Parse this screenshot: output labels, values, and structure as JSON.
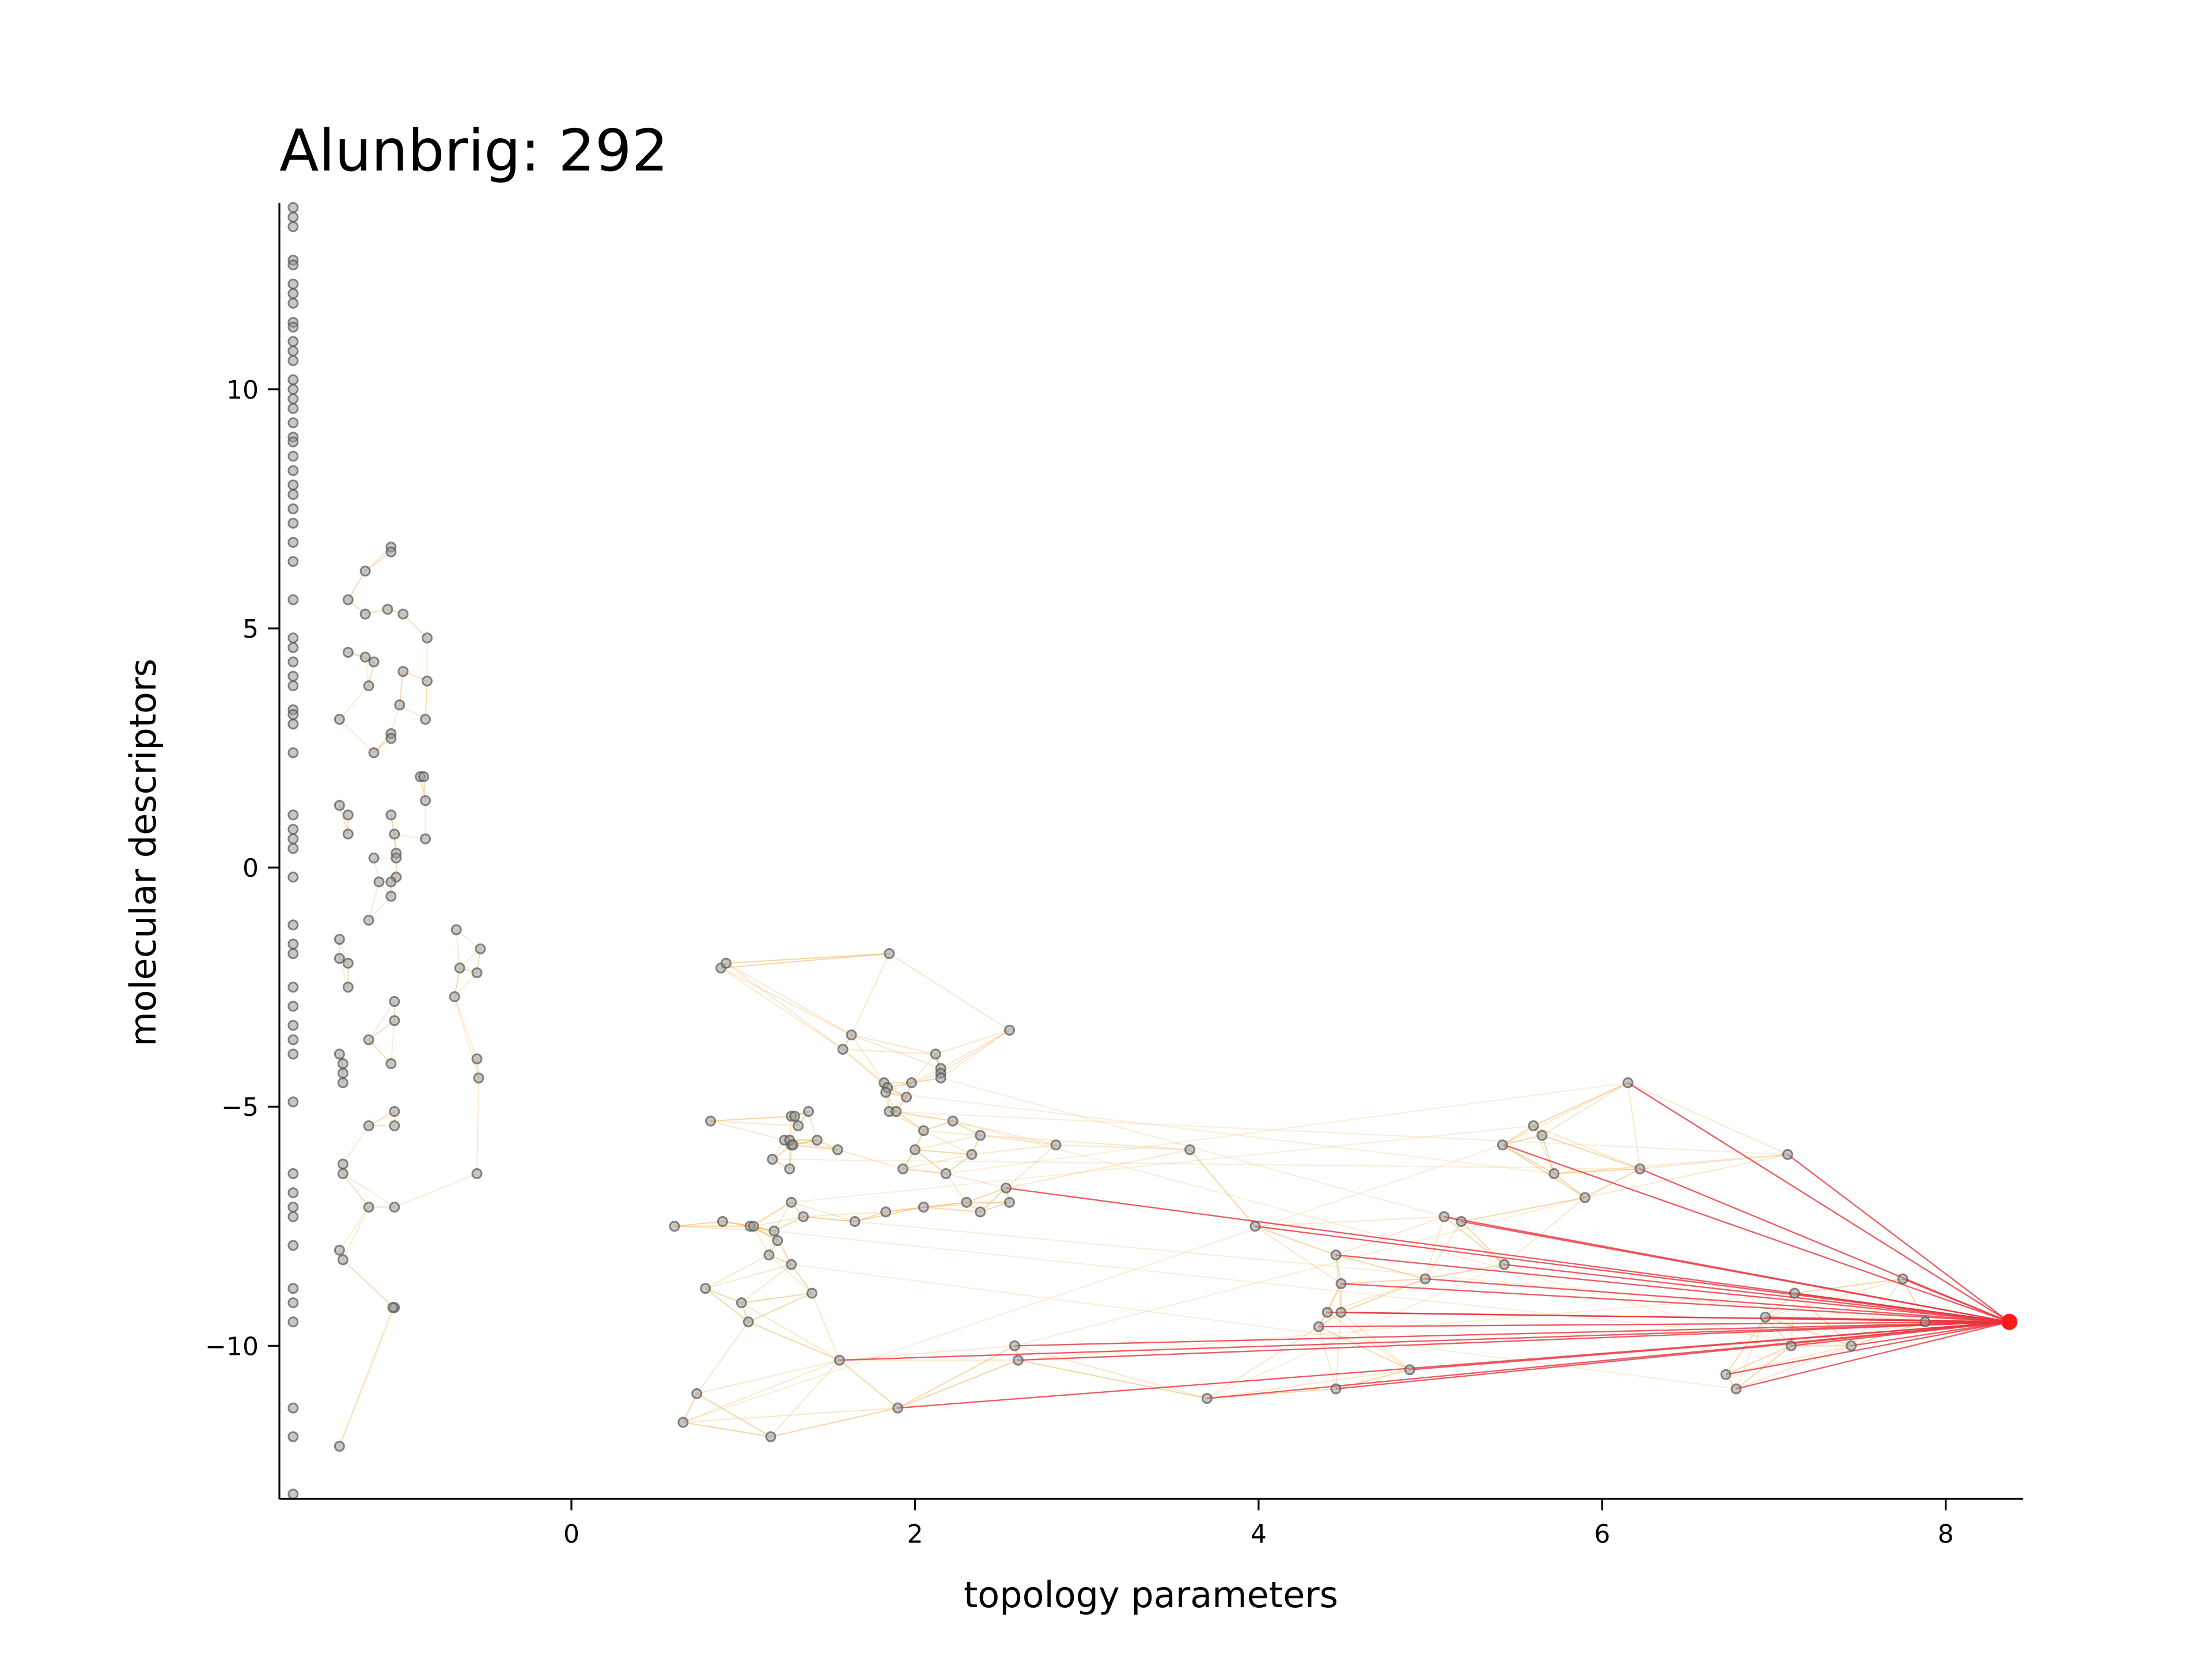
{
  "chart_data": {
    "type": "scatter",
    "title": "Alunbrig: 292",
    "xlabel": "topology parameters",
    "ylabel": "molecular descriptors",
    "xlim": [
      -1.7,
      8.45
    ],
    "ylim": [
      -13.2,
      13.9
    ],
    "xticks": [
      0,
      2,
      4,
      6,
      8
    ],
    "yticks": [
      -10,
      -5,
      0,
      5,
      10
    ],
    "xtick_labels": [
      "0",
      "2",
      "4",
      "6",
      "8"
    ],
    "ytick_labels": [
      "−10",
      "−5",
      "0",
      "5",
      "10"
    ],
    "grid": false,
    "colors": {
      "points": "#555555",
      "target": "#ff1a1a",
      "near_edges": "#e8323c",
      "far_edges": "#f4b860"
    },
    "target": {
      "x": 8.37,
      "y": -9.5
    },
    "points": [
      [
        -1.62,
        13.8
      ],
      [
        -1.62,
        13.6
      ],
      [
        -1.62,
        13.4
      ],
      [
        -1.62,
        12.7
      ],
      [
        -1.62,
        12.6
      ],
      [
        -1.62,
        12.2
      ],
      [
        -1.62,
        12.0
      ],
      [
        -1.62,
        11.8
      ],
      [
        -1.62,
        11.4
      ],
      [
        -1.62,
        11.3
      ],
      [
        -1.62,
        11.0
      ],
      [
        -1.62,
        10.8
      ],
      [
        -1.62,
        10.6
      ],
      [
        -1.62,
        10.2
      ],
      [
        -1.62,
        10.0
      ],
      [
        -1.62,
        9.8
      ],
      [
        -1.62,
        9.6
      ],
      [
        -1.62,
        9.3
      ],
      [
        -1.62,
        9.0
      ],
      [
        -1.62,
        8.9
      ],
      [
        -1.62,
        8.6
      ],
      [
        -1.62,
        8.3
      ],
      [
        -1.62,
        8.0
      ],
      [
        -1.62,
        7.8
      ],
      [
        -1.62,
        7.5
      ],
      [
        -1.62,
        7.2
      ],
      [
        -1.62,
        6.8
      ],
      [
        -1.62,
        6.4
      ],
      [
        -1.62,
        5.6
      ],
      [
        -1.62,
        4.8
      ],
      [
        -1.62,
        4.6
      ],
      [
        -1.62,
        4.3
      ],
      [
        -1.62,
        4.0
      ],
      [
        -1.62,
        3.8
      ],
      [
        -1.62,
        3.3
      ],
      [
        -1.62,
        3.2
      ],
      [
        -1.62,
        3.0
      ],
      [
        -1.62,
        2.4
      ],
      [
        -1.62,
        1.1
      ],
      [
        -1.62,
        0.8
      ],
      [
        -1.62,
        0.6
      ],
      [
        -1.62,
        0.4
      ],
      [
        -1.62,
        -0.2
      ],
      [
        -1.62,
        -1.2
      ],
      [
        -1.62,
        -1.6
      ],
      [
        -1.62,
        -1.8
      ],
      [
        -1.62,
        -2.5
      ],
      [
        -1.62,
        -2.9
      ],
      [
        -1.62,
        -3.3
      ],
      [
        -1.62,
        -3.6
      ],
      [
        -1.62,
        -3.9
      ],
      [
        -1.62,
        -4.9
      ],
      [
        -1.62,
        -6.4
      ],
      [
        -1.62,
        -6.8
      ],
      [
        -1.62,
        -7.1
      ],
      [
        -1.62,
        -7.3
      ],
      [
        -1.62,
        -7.9
      ],
      [
        -1.62,
        -8.8
      ],
      [
        -1.62,
        -9.1
      ],
      [
        -1.62,
        -9.5
      ],
      [
        -1.62,
        -11.3
      ],
      [
        -1.62,
        -11.9
      ],
      [
        -1.62,
        -13.1
      ],
      [
        -1.3,
        5.6
      ],
      [
        -1.3,
        4.5
      ],
      [
        -1.35,
        3.1
      ],
      [
        -1.35,
        1.3
      ],
      [
        -1.3,
        1.1
      ],
      [
        -1.3,
        0.7
      ],
      [
        -1.35,
        -1.5
      ],
      [
        -1.35,
        -1.9
      ],
      [
        -1.3,
        -2.0
      ],
      [
        -1.3,
        -2.5
      ],
      [
        -1.35,
        -3.9
      ],
      [
        -1.33,
        -4.1
      ],
      [
        -1.33,
        -4.3
      ],
      [
        -1.33,
        -4.5
      ],
      [
        -1.33,
        -6.2
      ],
      [
        -1.33,
        -6.4
      ],
      [
        -1.35,
        -8.0
      ],
      [
        -1.33,
        -8.2
      ],
      [
        -1.35,
        -12.1
      ],
      [
        -1.2,
        6.2
      ],
      [
        -1.2,
        5.3
      ],
      [
        -1.2,
        4.4
      ],
      [
        -1.15,
        4.3
      ],
      [
        -1.18,
        3.8
      ],
      [
        -1.15,
        2.4
      ],
      [
        -1.15,
        0.2
      ],
      [
        -1.12,
        -0.3
      ],
      [
        -1.18,
        -1.1
      ],
      [
        -1.18,
        -3.6
      ],
      [
        -1.18,
        -5.4
      ],
      [
        -1.18,
        -7.1
      ],
      [
        -1.05,
        6.7
      ],
      [
        -1.05,
        6.6
      ],
      [
        -1.07,
        5.4
      ],
      [
        -1.05,
        2.8
      ],
      [
        -1.05,
        2.7
      ],
      [
        -1.05,
        1.1
      ],
      [
        -1.03,
        0.7
      ],
      [
        -1.02,
        0.3
      ],
      [
        -1.02,
        0.2
      ],
      [
        -1.02,
        -0.2
      ],
      [
        -1.05,
        -0.3
      ],
      [
        -1.05,
        -0.6
      ],
      [
        -1.03,
        -2.8
      ],
      [
        -1.03,
        -3.2
      ],
      [
        -1.05,
        -4.1
      ],
      [
        -1.03,
        -5.1
      ],
      [
        -1.03,
        -5.4
      ],
      [
        -1.03,
        -7.1
      ],
      [
        -1.03,
        -9.2
      ],
      [
        -1.04,
        -9.2
      ],
      [
        -0.98,
        5.3
      ],
      [
        -0.98,
        4.1
      ],
      [
        -1.0,
        3.4
      ],
      [
        -0.88,
        1.9
      ],
      [
        -0.86,
        1.9
      ],
      [
        -0.85,
        1.4
      ],
      [
        -0.85,
        0.6
      ],
      [
        -0.84,
        4.8
      ],
      [
        -0.84,
        3.9
      ],
      [
        -0.85,
        3.1
      ],
      [
        -0.67,
        -1.3
      ],
      [
        -0.68,
        -2.7
      ],
      [
        -0.65,
        -2.1
      ],
      [
        -0.53,
        -1.7
      ],
      [
        -0.55,
        -2.2
      ],
      [
        -0.55,
        -4.0
      ],
      [
        -0.54,
        -4.4
      ],
      [
        -0.55,
        -6.4
      ],
      [
        0.87,
        -2.1
      ],
      [
        0.9,
        -2.0
      ],
      [
        0.6,
        -7.5
      ],
      [
        0.81,
        -5.3
      ],
      [
        0.88,
        -7.4
      ],
      [
        0.78,
        -8.8
      ],
      [
        0.99,
        -9.1
      ],
      [
        1.04,
        -7.5
      ],
      [
        1.06,
        -7.5
      ],
      [
        1.03,
        -9.5
      ],
      [
        0.73,
        -11.0
      ],
      [
        0.65,
        -11.6
      ],
      [
        1.17,
        -6.1
      ],
      [
        1.18,
        -7.6
      ],
      [
        1.2,
        -7.8
      ],
      [
        1.15,
        -8.1
      ],
      [
        1.16,
        -11.9
      ],
      [
        1.24,
        -5.7
      ],
      [
        1.28,
        -5.2
      ],
      [
        1.3,
        -5.2
      ],
      [
        1.32,
        -5.4
      ],
      [
        1.28,
        -5.8
      ],
      [
        1.27,
        -5.7
      ],
      [
        1.29,
        -5.8
      ],
      [
        1.27,
        -6.3
      ],
      [
        1.28,
        -7.0
      ],
      [
        1.28,
        -8.3
      ],
      [
        1.35,
        -7.3
      ],
      [
        1.38,
        -5.1
      ],
      [
        1.4,
        -8.9
      ],
      [
        1.43,
        -5.7
      ],
      [
        1.55,
        -5.9
      ],
      [
        1.58,
        -3.8
      ],
      [
        1.63,
        -3.5
      ],
      [
        1.65,
        -7.4
      ],
      [
        1.56,
        -10.3
      ],
      [
        1.85,
        -1.8
      ],
      [
        1.82,
        -4.5
      ],
      [
        1.84,
        -4.6
      ],
      [
        1.83,
        -4.7
      ],
      [
        1.85,
        -5.1
      ],
      [
        1.89,
        -5.1
      ],
      [
        1.83,
        -7.2
      ],
      [
        1.93,
        -6.3
      ],
      [
        1.95,
        -4.8
      ],
      [
        1.98,
        -4.5
      ],
      [
        2.0,
        -5.9
      ],
      [
        2.05,
        -5.5
      ],
      [
        2.05,
        -7.1
      ],
      [
        2.12,
        -3.9
      ],
      [
        2.15,
        -4.2
      ],
      [
        2.15,
        -4.3
      ],
      [
        2.15,
        -4.4
      ],
      [
        2.18,
        -6.4
      ],
      [
        2.22,
        -5.3
      ],
      [
        2.3,
        -7.0
      ],
      [
        2.33,
        -6.0
      ],
      [
        2.38,
        -5.6
      ],
      [
        2.38,
        -7.2
      ],
      [
        2.53,
        -6.7
      ],
      [
        2.55,
        -7.0
      ],
      [
        2.55,
        -3.4
      ],
      [
        2.82,
        -5.8
      ],
      [
        1.9,
        -11.3
      ],
      [
        3.6,
        -5.9
      ],
      [
        3.98,
        -7.5
      ],
      [
        3.7,
        -11.1
      ],
      [
        4.4,
        -9.3
      ],
      [
        4.45,
        -8.1
      ],
      [
        4.48,
        -9.3
      ],
      [
        4.48,
        -8.7
      ],
      [
        4.35,
        -9.6
      ],
      [
        4.45,
        -10.9
      ],
      [
        4.88,
        -10.5
      ],
      [
        4.97,
        -8.6
      ],
      [
        5.08,
        -7.3
      ],
      [
        5.18,
        -7.4
      ],
      [
        5.42,
        -5.8
      ],
      [
        5.43,
        -8.3
      ],
      [
        5.6,
        -5.4
      ],
      [
        5.65,
        -5.6
      ],
      [
        5.72,
        -6.4
      ],
      [
        5.9,
        -6.9
      ],
      [
        6.15,
        -4.5
      ],
      [
        6.22,
        -6.3
      ],
      [
        6.72,
        -10.6
      ],
      [
        6.78,
        -10.9
      ],
      [
        6.95,
        -9.4
      ],
      [
        7.08,
        -6.0
      ],
      [
        7.12,
        -8.9
      ],
      [
        7.1,
        -10.0
      ],
      [
        7.45,
        -10.0
      ],
      [
        7.75,
        -8.6
      ],
      [
        7.88,
        -9.5
      ],
      [
        2.58,
        -10.0
      ],
      [
        2.6,
        -10.3
      ]
    ],
    "near_edges": [
      [
        6.15,
        -4.5
      ],
      [
        7.08,
        -6.0
      ],
      [
        6.22,
        -6.3
      ],
      [
        5.43,
        -5.8
      ],
      [
        5.08,
        -7.3
      ],
      [
        5.18,
        -7.4
      ],
      [
        3.98,
        -7.5
      ],
      [
        2.53,
        -6.7
      ],
      [
        4.45,
        -8.1
      ],
      [
        4.48,
        -8.7
      ],
      [
        4.97,
        -8.6
      ],
      [
        5.43,
        -8.3
      ],
      [
        4.4,
        -9.3
      ],
      [
        4.48,
        -9.3
      ],
      [
        4.35,
        -9.6
      ],
      [
        6.95,
        -9.4
      ],
      [
        7.12,
        -8.9
      ],
      [
        7.75,
        -8.6
      ],
      [
        7.88,
        -9.5
      ],
      [
        7.45,
        -10.0
      ],
      [
        7.1,
        -10.0
      ],
      [
        6.72,
        -10.6
      ],
      [
        6.78,
        -10.9
      ],
      [
        4.88,
        -10.5
      ],
      [
        4.45,
        -10.9
      ],
      [
        3.7,
        -11.1
      ],
      [
        2.58,
        -10.0
      ],
      [
        2.6,
        -10.3
      ],
      [
        1.56,
        -10.3
      ],
      [
        1.9,
        -11.3
      ]
    ],
    "annotations": []
  }
}
